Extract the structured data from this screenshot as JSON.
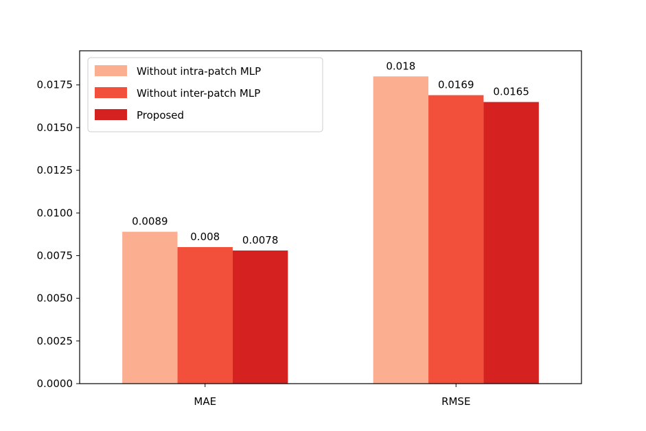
{
  "chart_data": {
    "type": "bar",
    "categories": [
      "MAE",
      "RMSE"
    ],
    "series": [
      {
        "name": "Without intra-patch MLP",
        "values": [
          0.0089,
          0.018
        ],
        "labels": [
          "0.0089",
          "0.018"
        ],
        "color": "#fcae91"
      },
      {
        "name": "Without inter-patch MLP",
        "values": [
          0.008,
          0.0169
        ],
        "labels": [
          "0.008",
          "0.0169"
        ],
        "color": "#f2503a"
      },
      {
        "name": "Proposed",
        "values": [
          0.0078,
          0.0165
        ],
        "labels": [
          "0.0078",
          "0.0165"
        ],
        "color": "#d62121"
      }
    ],
    "yticks": [
      "0.0000",
      "0.0025",
      "0.0050",
      "0.0075",
      "0.0100",
      "0.0125",
      "0.0150",
      "0.0175"
    ],
    "ylim": [
      0,
      0.0195
    ],
    "legend_position": "top-left",
    "grid": false
  }
}
